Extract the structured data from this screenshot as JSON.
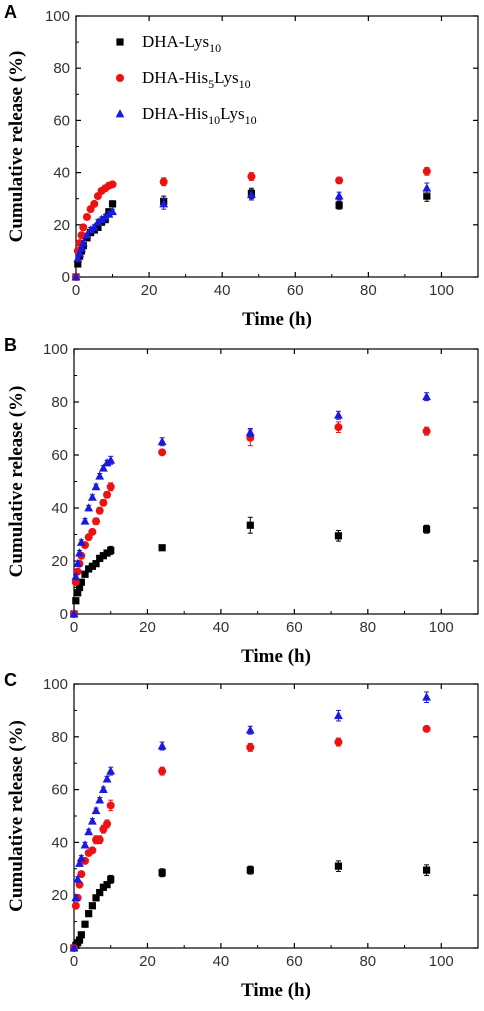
{
  "chart_data": [
    {
      "type": "scatter",
      "panel": "A",
      "xlabel": "Time (h)",
      "ylabel": "Cumulative release (%)",
      "xlim": [
        0,
        110
      ],
      "ylim": [
        0,
        100
      ],
      "xticks": [
        0,
        20,
        40,
        60,
        80,
        100
      ],
      "yticks": [
        0,
        20,
        40,
        60,
        80,
        100
      ],
      "legend_position": "top-left",
      "series": [
        {
          "name": "DHA-Lys10",
          "label_base": "DHA-Lys",
          "label_sub": "10",
          "color": "#000000",
          "marker": "square",
          "x": [
            0,
            0.5,
            1,
            1.5,
            2,
            3,
            4,
            5,
            6,
            7,
            8,
            9,
            10,
            24,
            48,
            72,
            96
          ],
          "y": [
            0,
            5,
            8,
            10,
            12,
            15,
            17,
            18,
            19,
            21,
            22,
            25,
            28,
            29,
            32,
            27.5,
            31
          ],
          "err": [
            0,
            0.5,
            0.5,
            0.5,
            0.8,
            0.8,
            1,
            1,
            1,
            1,
            1,
            1,
            1.2,
            2,
            2,
            1.5,
            2
          ]
        },
        {
          "name": "DHA-His5Lys10",
          "label_base": "DHA-His",
          "label_sub": "5",
          "label_mid": "Lys",
          "label_sub2": "10",
          "color": "#ee1111",
          "marker": "circle",
          "x": [
            0,
            0.5,
            1,
            1.5,
            2,
            3,
            4,
            5,
            6,
            7,
            8,
            9,
            10,
            24,
            48,
            72,
            96
          ],
          "y": [
            0,
            10,
            13,
            16,
            19,
            23,
            26,
            28,
            31,
            33,
            34,
            35,
            35.5,
            36.5,
            38.5,
            37,
            40.5
          ],
          "err": [
            0,
            0.8,
            0.8,
            0.8,
            1,
            1,
            1,
            1,
            1,
            1,
            1,
            1,
            1,
            1.5,
            1.5,
            1.2,
            1.5
          ]
        },
        {
          "name": "DHA-His10Lys10",
          "label_base": "DHA-His",
          "label_sub": "10",
          "label_mid": "Lys",
          "label_sub2": "10",
          "color": "#1a1adc",
          "marker": "triangle",
          "x": [
            0,
            0.5,
            1,
            1.5,
            2,
            3,
            4,
            5,
            6,
            7,
            8,
            9,
            10,
            24,
            48,
            72,
            96
          ],
          "y": [
            0,
            7,
            9,
            11,
            13,
            16,
            18,
            19,
            21,
            22,
            23,
            24,
            25,
            28,
            31.5,
            31,
            34
          ],
          "err": [
            0,
            0.5,
            0.5,
            0.5,
            0.8,
            0.8,
            1,
            1,
            1,
            1,
            1,
            1,
            1,
            2,
            2,
            1.5,
            2
          ]
        }
      ]
    },
    {
      "type": "scatter",
      "panel": "B",
      "xlabel": "Time (h)",
      "ylabel": "Cumulative release (%)",
      "xlim": [
        0,
        110
      ],
      "ylim": [
        0,
        100
      ],
      "xticks": [
        0,
        20,
        40,
        60,
        80,
        100
      ],
      "yticks": [
        0,
        20,
        40,
        60,
        80,
        100
      ],
      "series": [
        {
          "name": "DHA-Lys10",
          "color": "#000000",
          "marker": "square",
          "x": [
            0,
            0.5,
            1,
            1.5,
            2,
            3,
            4,
            5,
            6,
            7,
            8,
            9,
            10,
            24,
            48,
            72,
            96
          ],
          "y": [
            0,
            5,
            8,
            10,
            12,
            15,
            17,
            18,
            19,
            21,
            22,
            23,
            24,
            25,
            33.5,
            29.5,
            32
          ],
          "err": [
            0,
            0.5,
            0.5,
            0.5,
            0.8,
            0.8,
            1,
            1,
            1,
            1,
            1,
            1,
            1.5,
            0.8,
            3,
            2,
            1.5
          ]
        },
        {
          "name": "DHA-His5Lys10",
          "color": "#ee1111",
          "marker": "circle",
          "x": [
            0,
            0.5,
            1,
            1.5,
            2,
            3,
            4,
            5,
            6,
            7,
            8,
            9,
            10,
            24,
            48,
            72,
            96
          ],
          "y": [
            0,
            12,
            16,
            19,
            22,
            26,
            29,
            31,
            35,
            39,
            42,
            45,
            48,
            61,
            66.5,
            70.5,
            69
          ],
          "err": [
            0,
            1,
            1,
            1,
            1,
            1,
            1,
            1,
            1.2,
            1.2,
            1.2,
            1.2,
            1.5,
            1,
            3,
            2,
            1.5
          ]
        },
        {
          "name": "DHA-His10Lys10",
          "color": "#1a1adc",
          "marker": "triangle",
          "x": [
            0,
            0.5,
            1,
            1.5,
            2,
            3,
            4,
            5,
            6,
            7,
            8,
            9,
            10,
            24,
            48,
            72,
            96
          ],
          "y": [
            0,
            14,
            19,
            23,
            27,
            35,
            40,
            44,
            48,
            52,
            55,
            57,
            58,
            65,
            68.5,
            75,
            82
          ],
          "err": [
            0,
            1,
            1,
            1,
            1,
            1,
            1,
            1,
            1,
            1,
            1,
            1,
            1.5,
            1.5,
            1.5,
            1.5,
            1.5
          ]
        }
      ]
    },
    {
      "type": "scatter",
      "panel": "C",
      "xlabel": "Time (h)",
      "ylabel": "Cumulative release (%)",
      "xlim": [
        0,
        110
      ],
      "ylim": [
        0,
        100
      ],
      "xticks": [
        0,
        20,
        40,
        60,
        80,
        100
      ],
      "yticks": [
        0,
        20,
        40,
        60,
        80,
        100
      ],
      "series": [
        {
          "name": "DHA-Lys10",
          "color": "#000000",
          "marker": "square",
          "x": [
            0,
            0.5,
            1,
            1.5,
            2,
            3,
            4,
            5,
            6,
            7,
            8,
            9,
            10,
            24,
            48,
            72,
            96
          ],
          "y": [
            0,
            1,
            2,
            3,
            5,
            9,
            13,
            16,
            19,
            21,
            23,
            24,
            26,
            28.5,
            29.5,
            31,
            29.5
          ],
          "err": [
            0,
            0.5,
            0.5,
            0.5,
            0.5,
            0.8,
            1,
            1,
            1,
            1,
            1,
            1,
            1.5,
            1.5,
            1.5,
            2,
            2
          ]
        },
        {
          "name": "DHA-His5Lys10",
          "color": "#ee1111",
          "marker": "circle",
          "x": [
            0,
            0.5,
            1,
            1.5,
            2,
            3,
            4,
            5,
            6,
            7,
            8,
            9,
            10,
            24,
            48,
            72,
            96
          ],
          "y": [
            0,
            16,
            19,
            24,
            28,
            33,
            36,
            37,
            41,
            41,
            45,
            47,
            54,
            67,
            76,
            78,
            83
          ],
          "err": [
            0,
            1,
            1,
            1,
            1,
            1,
            1,
            1,
            1.5,
            1.5,
            1.5,
            1.5,
            2,
            1.5,
            1.5,
            1.5,
            1
          ]
        },
        {
          "name": "DHA-His10Lys10",
          "color": "#1a1adc",
          "marker": "triangle",
          "x": [
            0,
            0.5,
            1,
            1.5,
            2,
            3,
            4,
            5,
            6,
            7,
            8,
            9,
            10,
            24,
            48,
            72,
            96
          ],
          "y": [
            0,
            19,
            26,
            32,
            34,
            39,
            44,
            48,
            52,
            56,
            60,
            64,
            67,
            76.5,
            82.5,
            88,
            95
          ],
          "err": [
            0,
            1,
            1,
            1,
            1,
            1,
            1,
            1,
            1,
            1,
            1,
            1,
            1.5,
            1.5,
            1.5,
            2,
            2
          ]
        }
      ]
    }
  ]
}
